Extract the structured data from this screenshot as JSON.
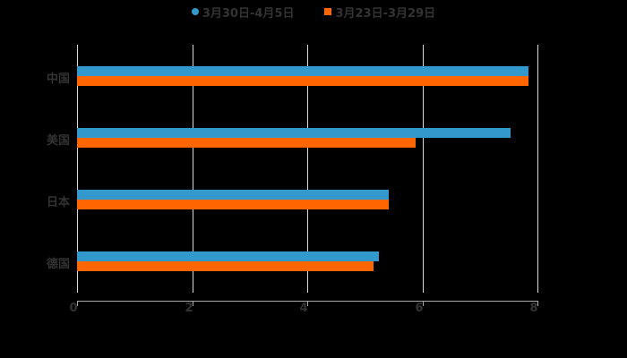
{
  "chart_data": {
    "type": "bar",
    "orientation": "horizontal",
    "title": "",
    "categories": [
      "中国",
      "美国",
      "日本",
      "德国"
    ],
    "series": [
      {
        "name": "3月30日-4月5日",
        "color": "#3399cc",
        "values": [
          7.84,
          7.53,
          5.42,
          5.24
        ]
      },
      {
        "name": "3月23日-3月29日",
        "color": "#ff6600",
        "values": [
          7.84,
          5.88,
          5.42,
          5.15
        ]
      }
    ],
    "xlabel": "",
    "ylabel": "",
    "xlim": [
      0,
      8
    ],
    "xticks": [
      "0",
      "2",
      "4",
      "6",
      "8"
    ],
    "grid": true,
    "legend_position": "top"
  },
  "legend": {
    "items": [
      {
        "label": "3月30日-4月5日",
        "color": "#3399cc",
        "shape": "circle"
      },
      {
        "label": "3月23日-3月29日",
        "color": "#ff6600",
        "shape": "square"
      }
    ]
  },
  "axis": {
    "x_ticks": [
      "0",
      "2",
      "4",
      "6",
      "8"
    ],
    "categories": [
      "中国",
      "美国",
      "日本",
      "德国"
    ]
  },
  "colors": {
    "background": "#000000",
    "series1": "#3399cc",
    "series2": "#ff6600",
    "text": "#333333",
    "grid": "#d9d9d9"
  }
}
